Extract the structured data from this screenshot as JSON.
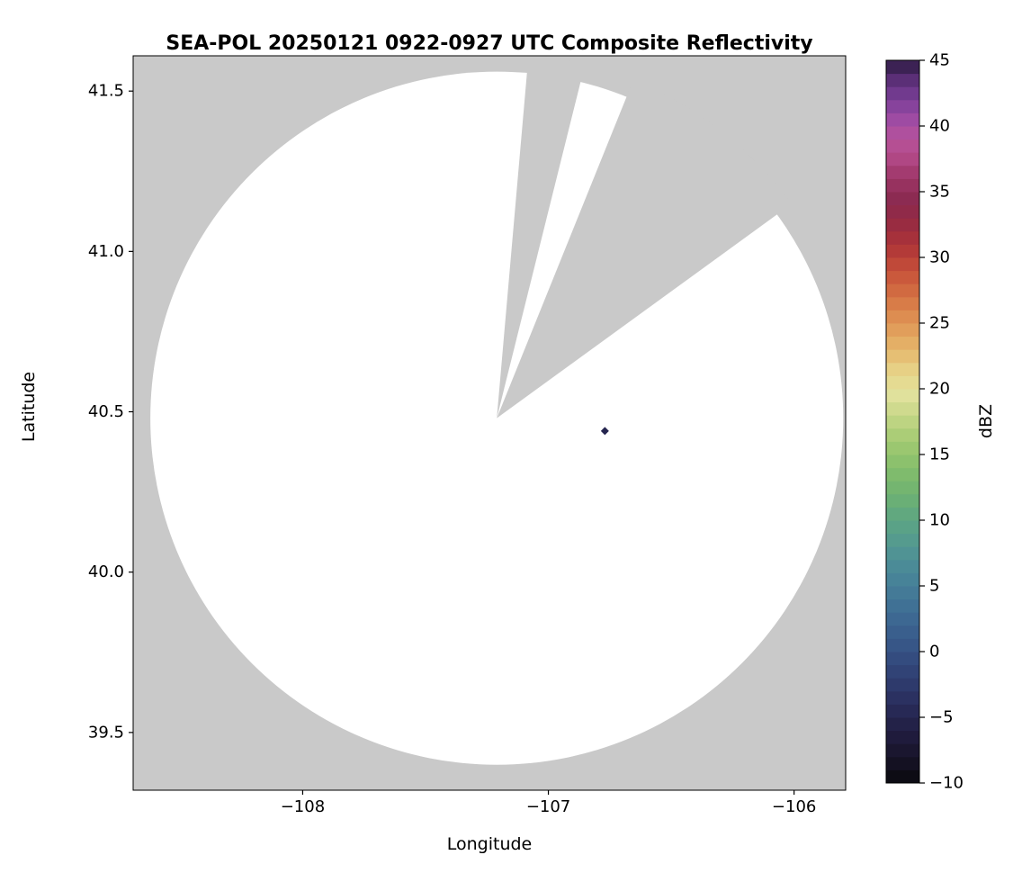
{
  "chart_data": {
    "type": "heatmap",
    "subtype": "radar-composite-reflectivity-map",
    "title": "SEA-POL 20250121 0922-0927 UTC Composite Reflectivity",
    "xlabel": "Longitude",
    "ylabel": "Latitude",
    "xlim": [
      -108.69,
      -105.79
    ],
    "ylim": [
      39.32,
      41.61
    ],
    "x_ticks": [
      -108,
      -107,
      -106
    ],
    "x_tick_labels": [
      "−108",
      "−107",
      "−106"
    ],
    "y_ticks": [
      39.5,
      40.0,
      40.5,
      41.0,
      41.5
    ],
    "y_tick_labels": [
      "39.5",
      "40.0",
      "40.5",
      "41.0",
      "41.5"
    ],
    "grid": false,
    "colors": {
      "figure_background": "#ffffff",
      "masked_background": "#c9c9c9",
      "coverage_fill": "#ffffff",
      "text": "#000000"
    },
    "radar": {
      "center_lon": -107.21,
      "center_lat": 40.48,
      "coverage_radius_deg_lon": 1.41,
      "blocked_sectors_azimuth_deg": [
        [
          5,
          14
        ],
        [
          22,
          54
        ]
      ]
    },
    "echoes": [
      {
        "lon": -106.77,
        "lat": 40.44,
        "dbz": -5
      }
    ],
    "colorbar": {
      "label": "dBZ",
      "min": -10,
      "max": 45,
      "step_dbz": 1,
      "position": "right",
      "ticks": [
        -10,
        -5,
        0,
        5,
        10,
        15,
        20,
        25,
        30,
        35,
        40,
        45
      ],
      "tick_labels": [
        "−10",
        "−5",
        "0",
        "5",
        "10",
        "15",
        "20",
        "25",
        "30",
        "35",
        "40",
        "45"
      ],
      "stops": [
        [
          -10,
          "#0a090d"
        ],
        [
          -8,
          "#171329"
        ],
        [
          -6,
          "#211e42"
        ],
        [
          -4,
          "#292c5b"
        ],
        [
          -2,
          "#2f3e71"
        ],
        [
          0,
          "#355184"
        ],
        [
          2,
          "#3b6390"
        ],
        [
          4,
          "#427597"
        ],
        [
          6,
          "#498798"
        ],
        [
          8,
          "#529792"
        ],
        [
          10,
          "#5da583"
        ],
        [
          12,
          "#6eb272"
        ],
        [
          14,
          "#85be6b"
        ],
        [
          16,
          "#a2ca72"
        ],
        [
          18,
          "#c6d787"
        ],
        [
          19.5,
          "#e0e19c"
        ],
        [
          21,
          "#e8d88d"
        ],
        [
          23,
          "#e5b76c"
        ],
        [
          25,
          "#df9655"
        ],
        [
          27,
          "#d57343"
        ],
        [
          29,
          "#c65039"
        ],
        [
          31,
          "#ac3338"
        ],
        [
          33,
          "#922944"
        ],
        [
          34.5,
          "#8c2b52"
        ],
        [
          36,
          "#9c3566"
        ],
        [
          37.5,
          "#b04784"
        ],
        [
          39,
          "#b8539b"
        ],
        [
          40.5,
          "#9e4ba3"
        ],
        [
          42,
          "#7c3f99"
        ],
        [
          43.5,
          "#5b2f77"
        ],
        [
          45,
          "#2d1b43"
        ]
      ]
    }
  }
}
